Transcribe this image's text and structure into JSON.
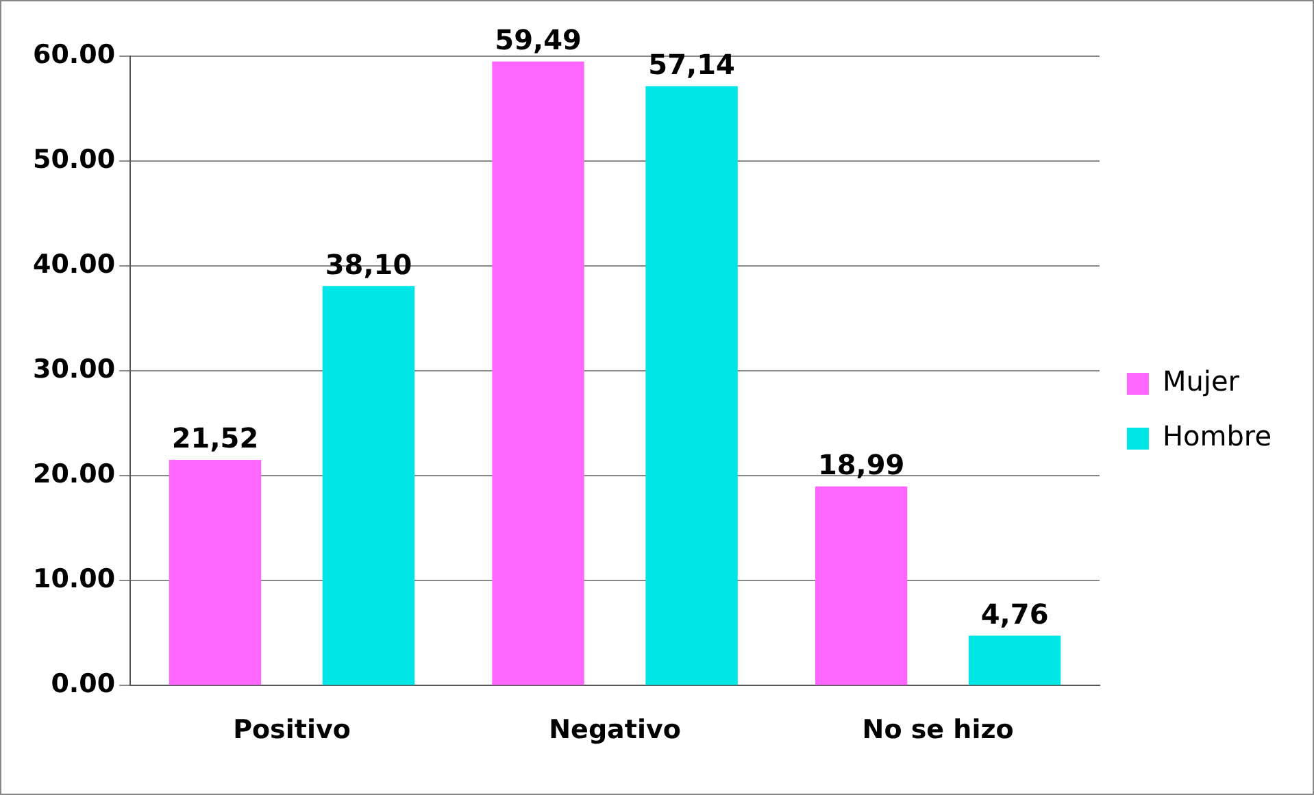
{
  "chart_data": {
    "type": "bar",
    "categories": [
      "Positivo",
      "Negativo",
      "No se hizo"
    ],
    "series": [
      {
        "name": "Mujer",
        "color": "#ff66ff",
        "values": [
          21.52,
          59.49,
          18.99
        ],
        "value_labels": [
          "21,52",
          "59,49",
          "18,99"
        ]
      },
      {
        "name": "Hombre",
        "color": "#00e5e5",
        "values": [
          38.1,
          57.14,
          4.76
        ],
        "value_labels": [
          "38,10",
          "57,14",
          "4,76"
        ]
      }
    ],
    "ylim": [
      0,
      60
    ],
    "yticks": [
      {
        "value": 0,
        "label": "0.00"
      },
      {
        "value": 10,
        "label": "10.00"
      },
      {
        "value": 20,
        "label": "20.00"
      },
      {
        "value": 30,
        "label": "30.00"
      },
      {
        "value": 40,
        "label": "40.00"
      },
      {
        "value": 50,
        "label": "50.00"
      },
      {
        "value": 60,
        "label": "60.00"
      }
    ],
    "grid": "y",
    "legend": "right"
  }
}
